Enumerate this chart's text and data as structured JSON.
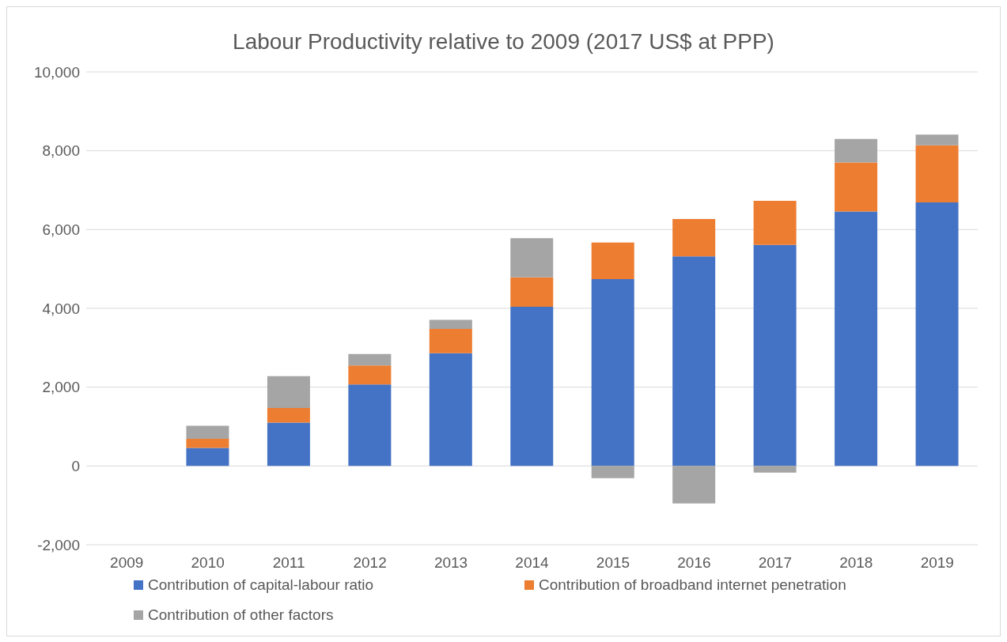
{
  "chart_data": {
    "type": "bar",
    "title": "Labour Productivity relative to 2009 (2017 US$ at PPP)",
    "stacked": true,
    "categories": [
      "2009",
      "2010",
      "2011",
      "2012",
      "2013",
      "2014",
      "2015",
      "2016",
      "2017",
      "2018",
      "2019"
    ],
    "series": [
      {
        "name": "Contribution of capital-labour ratio",
        "color": "#4472c4",
        "values": [
          0,
          460,
          1100,
          2070,
          2860,
          4040,
          4740,
          5320,
          5610,
          6460,
          6690
        ]
      },
      {
        "name": "Contribution of broadband internet penetration",
        "color": "#ed7d31",
        "values": [
          0,
          230,
          370,
          480,
          620,
          750,
          930,
          950,
          1120,
          1240,
          1450
        ]
      },
      {
        "name": "Contribution of other factors",
        "color": "#a5a5a5",
        "values": [
          0,
          330,
          810,
          290,
          230,
          990,
          -310,
          -950,
          -170,
          600,
          270
        ]
      }
    ],
    "ylim": [
      -2000,
      10000
    ],
    "yticks": [
      {
        "value": -2000,
        "label": "-2,000"
      },
      0,
      {
        "value": 2000,
        "label": "2,000"
      },
      {
        "value": 4000,
        "label": "4,000"
      },
      {
        "value": 6000,
        "label": "6,000"
      },
      {
        "value": 8000,
        "label": "8,000"
      },
      {
        "value": 10000,
        "label": "10,000"
      }
    ],
    "grid": "y",
    "legend": "bottom"
  }
}
